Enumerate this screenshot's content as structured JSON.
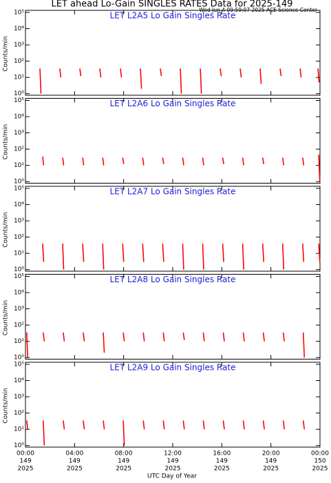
{
  "header": {
    "title": "LET ahead Lo-Gain SINGLES RATES Data for 2025-149",
    "timestamp": "Wed Jun  4 09:59:07 2025 ACE Science Center"
  },
  "x_axis": {
    "label": "UTC Day of Year",
    "xlim": [
      0,
      24
    ],
    "xticks": [
      {
        "value": 0,
        "label": "00:00",
        "day": "149",
        "year": "2025"
      },
      {
        "value": 4,
        "label": "04:00",
        "day": "149",
        "year": "2025"
      },
      {
        "value": 8,
        "label": "08:00",
        "day": "149",
        "year": "2025"
      },
      {
        "value": 12,
        "label": "12:00",
        "day": "149",
        "year": "2025"
      },
      {
        "value": 16,
        "label": "16:00",
        "day": "149",
        "year": "2025"
      },
      {
        "value": 20,
        "label": "20:00",
        "day": "149",
        "year": "2025"
      },
      {
        "value": 24,
        "label": "00:00",
        "day": "150",
        "year": "2025"
      }
    ]
  },
  "chart_data": [
    {
      "type": "spike",
      "title": "LET L2A5 Lo Gain Singles Rate",
      "y_label": "Counts/min",
      "log_scale": true,
      "color": "#ff0000",
      "ylim": [
        0.8,
        100000
      ],
      "yticks": [
        {
          "value": 1,
          "label": "10⁰"
        },
        {
          "value": 10,
          "label": "10¹"
        },
        {
          "value": 100,
          "label": "10²"
        },
        {
          "value": 1000,
          "label": "10³"
        },
        {
          "value": 10000,
          "label": "10⁴"
        },
        {
          "value": 100000,
          "label": "10⁵"
        }
      ],
      "x": [
        1.18,
        2.8,
        4.43,
        6.06,
        7.74,
        9.37,
        10.99,
        12.62,
        14.25,
        15.87,
        17.5,
        19.12,
        20.75,
        22.38,
        23.84
      ],
      "low": [
        1,
        10,
        12,
        10,
        10,
        2,
        12,
        1,
        1,
        12,
        10,
        4,
        12,
        10,
        5
      ],
      "high": [
        35,
        35,
        35,
        35,
        35,
        35,
        35,
        35,
        35,
        35,
        35,
        35,
        35,
        35,
        35
      ]
    },
    {
      "type": "spike",
      "title": "LET L2A6 Lo Gain Singles Rate",
      "y_label": "Counts/min",
      "log_scale": true,
      "color": "#ff0000",
      "ylim": [
        0.8,
        100000
      ],
      "yticks": [
        {
          "value": 1,
          "label": "10⁰"
        },
        {
          "value": 10,
          "label": "10¹"
        },
        {
          "value": 100,
          "label": "10²"
        },
        {
          "value": 1000,
          "label": "10³"
        },
        {
          "value": 10000,
          "label": "10⁴"
        },
        {
          "value": 100000,
          "label": "10⁵"
        }
      ],
      "x": [
        1.4,
        3.03,
        4.66,
        6.29,
        7.92,
        9.55,
        11.18,
        12.81,
        14.44,
        16.07,
        17.7,
        19.33,
        20.96,
        22.59,
        23.9
      ],
      "low": [
        10,
        10,
        10,
        10,
        12,
        10,
        12,
        10,
        10,
        12,
        10,
        12,
        10,
        10,
        1
      ],
      "high": [
        35,
        30,
        30,
        30,
        30,
        30,
        30,
        30,
        30,
        30,
        30,
        30,
        30,
        30,
        45
      ]
    },
    {
      "type": "spike",
      "title": "LET L2A7 Lo Gain Singles Rate",
      "y_label": "Counts/min",
      "log_scale": true,
      "color": "#ff0000",
      "ylim": [
        0.8,
        100000
      ],
      "yticks": [
        {
          "value": 1,
          "label": "10⁰"
        },
        {
          "value": 10,
          "label": "10¹"
        },
        {
          "value": 100,
          "label": "10²"
        },
        {
          "value": 1000,
          "label": "10³"
        },
        {
          "value": 10000,
          "label": "10⁴"
        },
        {
          "value": 100000,
          "label": "10⁵"
        }
      ],
      "x": [
        1.4,
        3.03,
        4.66,
        6.29,
        7.92,
        9.55,
        11.18,
        12.81,
        14.44,
        16.07,
        17.7,
        19.33,
        20.96,
        22.59,
        23.9
      ],
      "low": [
        3,
        1,
        3,
        1,
        3,
        3,
        3,
        1,
        1,
        3,
        1,
        3,
        1,
        3,
        3
      ],
      "high": [
        40,
        40,
        40,
        40,
        40,
        40,
        40,
        40,
        40,
        40,
        40,
        40,
        40,
        40,
        40
      ]
    },
    {
      "type": "spike",
      "title": "LET L2A8 Lo Gain Singles Rate",
      "y_label": "Counts/min",
      "log_scale": true,
      "color": "#ff0000",
      "ylim": [
        0.8,
        100000
      ],
      "yticks": [
        {
          "value": 1,
          "label": "10⁰"
        },
        {
          "value": 10,
          "label": "10¹"
        },
        {
          "value": 100,
          "label": "10²"
        },
        {
          "value": 1000,
          "label": "10³"
        },
        {
          "value": 10000,
          "label": "10⁴"
        },
        {
          "value": 100000,
          "label": "10⁵"
        }
      ],
      "x": [
        0.1,
        1.45,
        3.08,
        4.71,
        6.34,
        7.97,
        9.6,
        11.23,
        12.86,
        14.49,
        16.12,
        17.75,
        19.38,
        21.01,
        22.64
      ],
      "low": [
        1,
        10,
        10,
        10,
        2,
        10,
        10,
        10,
        12,
        10,
        10,
        10,
        10,
        10,
        1
      ],
      "high": [
        35,
        35,
        35,
        35,
        35,
        35,
        35,
        35,
        35,
        35,
        35,
        35,
        35,
        35,
        35
      ]
    },
    {
      "type": "spike",
      "title": "LET L2A9 Lo Gain Singles Rate",
      "y_label": "Counts/min",
      "log_scale": true,
      "color": "#ff0000",
      "ylim": [
        0.8,
        100000
      ],
      "yticks": [
        {
          "value": 1,
          "label": "10⁰"
        },
        {
          "value": 10,
          "label": "10¹"
        },
        {
          "value": 100,
          "label": "10²"
        },
        {
          "value": 1000,
          "label": "10³"
        },
        {
          "value": 10000,
          "label": "10⁴"
        },
        {
          "value": 100000,
          "label": "10⁵"
        }
      ],
      "x": [
        0.1,
        1.45,
        3.08,
        4.71,
        6.34,
        7.97,
        9.6,
        11.23,
        12.86,
        14.49,
        16.12,
        17.75,
        19.38,
        21.01,
        22.64
      ],
      "low": [
        10,
        1,
        10,
        10,
        10,
        1,
        10,
        10,
        10,
        10,
        10,
        10,
        10,
        10,
        10
      ],
      "high": [
        35,
        35,
        35,
        35,
        35,
        35,
        35,
        35,
        35,
        35,
        35,
        35,
        35,
        35,
        35
      ]
    }
  ]
}
